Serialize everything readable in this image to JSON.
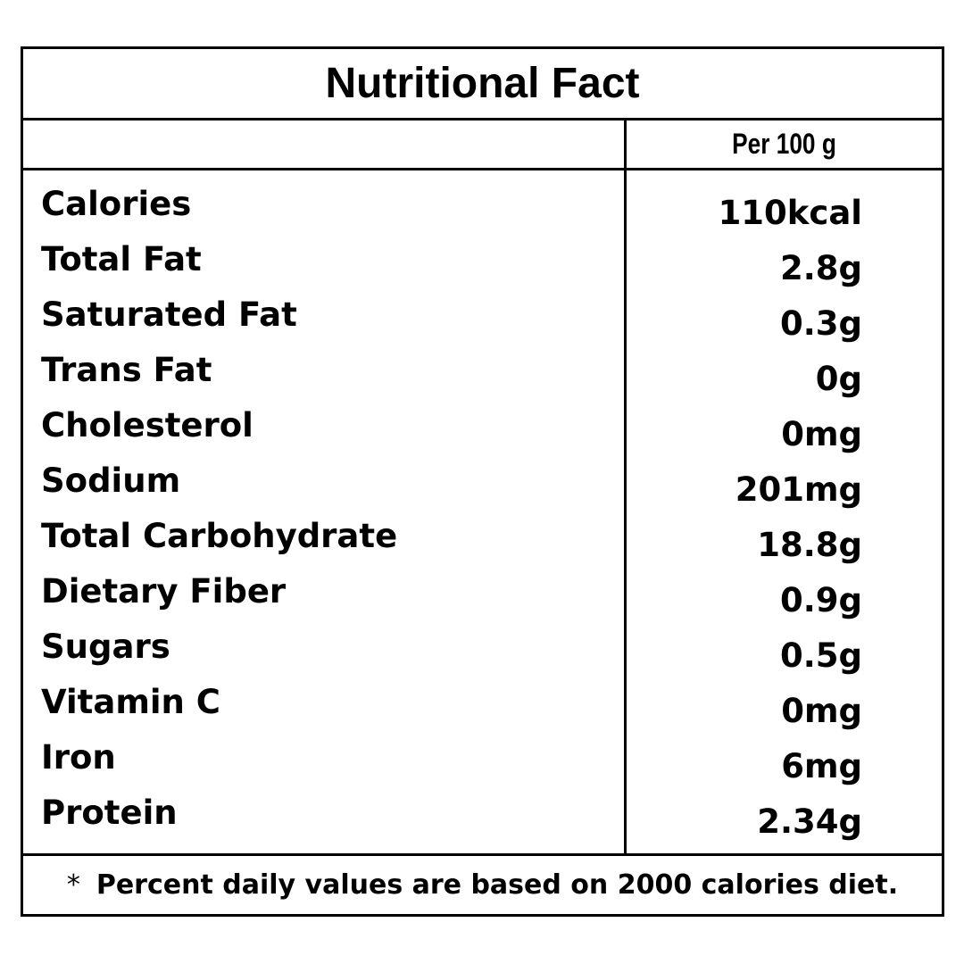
{
  "title": "Nutritional Fact",
  "column_header": "Per 100 g",
  "nutrients": [
    {
      "name": "Calories",
      "value": "110kcal"
    },
    {
      "name": "Total Fat",
      "value": "2.8g"
    },
    {
      "name": "Saturated Fat",
      "value": "0.3g"
    },
    {
      "name": "Trans Fat",
      "value": "0g"
    },
    {
      "name": "Cholesterol",
      "value": "0mg"
    },
    {
      "name": "Sodium",
      "value": "201mg"
    },
    {
      "name": "Total Carbohydrate",
      "value": "18.8g"
    },
    {
      "name": "Dietary Fiber",
      "value": "0.9g"
    },
    {
      "name": "Sugars",
      "value": "0.5g"
    },
    {
      "name": "Vitamin C",
      "value": "0mg"
    },
    {
      "name": "Iron",
      "value": "6mg"
    },
    {
      "name": "Protein",
      "value": "2.34g"
    }
  ],
  "footnote": {
    "marker": "*",
    "text": "Percent daily values are based on 2000 calories diet."
  }
}
